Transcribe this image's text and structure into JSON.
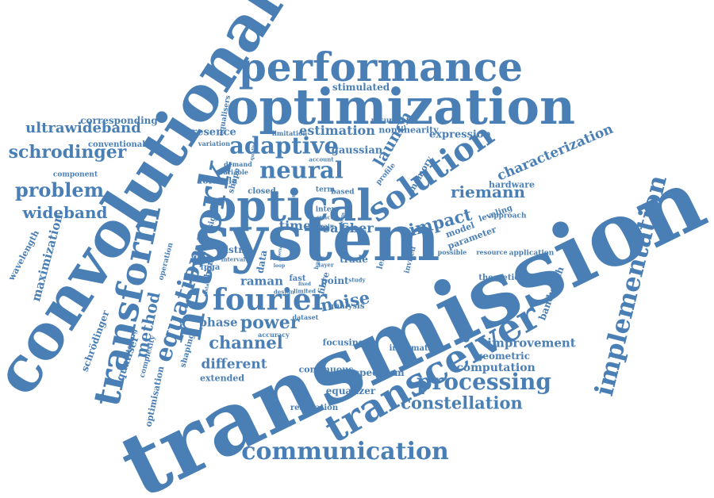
{
  "word_cloud": {
    "color": "#4a7fb5",
    "words": [
      {
        "text": "transmission",
        "rank": 1,
        "orientation": "diagonal-up"
      },
      {
        "text": "system",
        "rank": 2,
        "orientation": "horizontal"
      },
      {
        "text": "convolutional",
        "rank": 3,
        "orientation": "diagonal-up"
      },
      {
        "text": "optimization",
        "rank": 4,
        "orientation": "horizontal"
      },
      {
        "text": "performance",
        "rank": 5,
        "orientation": "horizontal"
      },
      {
        "text": "transceiver",
        "rank": 6,
        "orientation": "diagonal-up"
      },
      {
        "text": "optical",
        "rank": 7,
        "orientation": "horizontal"
      },
      {
        "text": "network",
        "rank": 8,
        "orientation": "vertical"
      },
      {
        "text": "transform",
        "rank": 9,
        "orientation": "vertical"
      },
      {
        "text": "solution",
        "rank": 10,
        "orientation": "diagonal-up"
      },
      {
        "text": "communication",
        "rank": 11,
        "orientation": "horizontal"
      },
      {
        "text": "implementation",
        "rank": 12,
        "orientation": "vertical"
      },
      {
        "text": "fourier",
        "rank": 13,
        "orientation": "horizontal"
      },
      {
        "text": "processing",
        "rank": 14,
        "orientation": "horizontal"
      },
      {
        "text": "adaptive",
        "rank": 15,
        "orientation": "horizontal"
      },
      {
        "text": "neural",
        "rank": 16,
        "orientation": "horizontal"
      },
      {
        "text": "equation",
        "rank": 17,
        "orientation": "vertical"
      },
      {
        "text": "schrodinger",
        "rank": 18,
        "orientation": "horizontal"
      },
      {
        "text": "problem",
        "rank": 19,
        "orientation": "horizontal"
      },
      {
        "text": "constellation",
        "rank": 20,
        "orientation": "horizontal"
      },
      {
        "text": "ultrawideband",
        "rank": 21,
        "orientation": "horizontal"
      },
      {
        "text": "power",
        "rank": 22,
        "orientation": "horizontal"
      },
      {
        "text": "channel",
        "rank": 23,
        "orientation": "horizontal"
      },
      {
        "text": "noise",
        "rank": 24,
        "orientation": "horizontal"
      },
      {
        "text": "method",
        "rank": 25,
        "orientation": "vertical"
      },
      {
        "text": "wideband",
        "rank": 26,
        "orientation": "horizontal"
      },
      {
        "text": "riemann",
        "rank": 27,
        "orientation": "horizontal"
      },
      {
        "text": "impact",
        "rank": 28,
        "orientation": "diagonal-up"
      },
      {
        "text": "launch",
        "rank": 29,
        "orientation": "diagonal-up"
      },
      {
        "text": "characterization",
        "rank": 30,
        "orientation": "diagonal-up"
      },
      {
        "text": "estimation",
        "rank": 31,
        "orientation": "horizontal"
      },
      {
        "text": "maximization",
        "rank": 32,
        "orientation": "vertical"
      },
      {
        "text": "time",
        "rank": 33,
        "orientation": "horizontal"
      },
      {
        "text": "real",
        "rank": 34,
        "orientation": "horizontal"
      },
      {
        "text": "fiber",
        "rank": 35,
        "orientation": "horizontal"
      },
      {
        "text": "different",
        "rank": 36,
        "orientation": "horizontal"
      },
      {
        "text": "improvement",
        "rank": 37,
        "orientation": "horizontal"
      },
      {
        "text": "bandwidth",
        "rank": 38,
        "orientation": "vertical"
      },
      {
        "text": "computation",
        "rank": 39,
        "orientation": "horizontal"
      },
      {
        "text": "phase",
        "rank": 40,
        "orientation": "horizontal"
      },
      {
        "text": "raman",
        "rank": 41,
        "orientation": "horizontal"
      },
      {
        "text": "gaussian",
        "rank": 42,
        "orientation": "horizontal"
      },
      {
        "text": "expression",
        "rank": 43,
        "orientation": "horizontal"
      },
      {
        "text": "presence",
        "rank": 44,
        "orientation": "horizontal"
      },
      {
        "text": "schrödinger",
        "rank": 45,
        "orientation": "vertical"
      },
      {
        "text": "wavelength",
        "rank": 46,
        "orientation": "vertical"
      },
      {
        "text": "equaliser",
        "rank": 47,
        "orientation": "vertical"
      },
      {
        "text": "corresponding",
        "rank": 48,
        "orientation": "horizontal"
      },
      {
        "text": "conventional",
        "rank": 49,
        "orientation": "horizontal"
      },
      {
        "text": "component",
        "rank": 50,
        "orientation": "horizontal"
      },
      {
        "text": "formula",
        "rank": 51,
        "orientation": "horizontal"
      },
      {
        "text": "shape",
        "rank": 52,
        "orientation": "vertical"
      },
      {
        "text": "closed",
        "rank": 53,
        "orientation": "horizontal"
      },
      {
        "text": "term",
        "rank": 54,
        "orientation": "horizontal"
      },
      {
        "text": "hardware",
        "rank": 55,
        "orientation": "horizontal"
      },
      {
        "text": "model",
        "rank": 56,
        "orientation": "diagonal-up"
      },
      {
        "text": "leveling",
        "rank": 57,
        "orientation": "diagonal-up"
      },
      {
        "text": "parameter",
        "rank": 58,
        "orientation": "diagonal-up"
      },
      {
        "text": "approach",
        "rank": 59,
        "orientation": "horizontal"
      },
      {
        "text": "application",
        "rank": 60,
        "orientation": "horizontal"
      },
      {
        "text": "resource",
        "rank": 61,
        "orientation": "horizontal"
      },
      {
        "text": "possible",
        "rank": 62,
        "orientation": "horizontal"
      },
      {
        "text": "theoretical",
        "rank": 63,
        "orientation": "horizontal"
      },
      {
        "text": "focusing",
        "rank": 64,
        "orientation": "horizontal"
      },
      {
        "text": "information",
        "rank": 65,
        "orientation": "horizontal"
      },
      {
        "text": "geometric",
        "rank": 66,
        "orientation": "horizontal"
      },
      {
        "text": "spectrum",
        "rank": 67,
        "orientation": "horizontal"
      },
      {
        "text": "continuous",
        "rank": 68,
        "orientation": "horizontal"
      },
      {
        "text": "equalizer",
        "rank": 69,
        "orientation": "horizontal"
      },
      {
        "text": "realization",
        "rank": 70,
        "orientation": "horizontal"
      },
      {
        "text": "extended",
        "rank": 71,
        "orientation": "horizontal"
      },
      {
        "text": "shaping",
        "rank": 72,
        "orientation": "vertical"
      },
      {
        "text": "optimisation",
        "rank": 73,
        "orientation": "vertical"
      },
      {
        "text": "scattering",
        "rank": 74,
        "orientation": "vertical"
      },
      {
        "text": "complexity",
        "rank": 75,
        "orientation": "vertical"
      },
      {
        "text": "trade",
        "rank": 76,
        "orientation": "horizontal"
      },
      {
        "text": "point",
        "rank": 77,
        "orientation": "horizontal"
      },
      {
        "text": "analysis",
        "rank": 78,
        "orientation": "horizontal"
      },
      {
        "text": "dataset",
        "rank": 79,
        "orientation": "horizontal"
      },
      {
        "text": "accuracy",
        "rank": 80,
        "orientation": "horizontal"
      },
      {
        "text": "fast",
        "rank": 81,
        "orientation": "horizontal"
      },
      {
        "text": "fibre",
        "rank": 82,
        "orientation": "vertical"
      },
      {
        "text": "length",
        "rank": 83,
        "orientation": "vertical"
      },
      {
        "text": "invited",
        "rank": 84,
        "orientation": "vertical"
      },
      {
        "text": "data",
        "rank": 85,
        "orientation": "vertical"
      },
      {
        "text": "blstm",
        "rank": 86,
        "orientation": "horizontal"
      },
      {
        "text": "fpga",
        "rank": 87,
        "orientation": "horizontal"
      },
      {
        "text": "short",
        "rank": 88,
        "orientation": "vertical"
      },
      {
        "text": "interval",
        "rank": 89,
        "orientation": "horizontal"
      },
      {
        "text": "signal",
        "rank": 90,
        "orientation": "vertical"
      },
      {
        "text": "variable",
        "rank": 91,
        "orientation": "horizontal"
      },
      {
        "text": "demand",
        "rank": 92,
        "orientation": "horizontal"
      },
      {
        "text": "variation",
        "rank": 93,
        "orientation": "horizontal"
      },
      {
        "text": "equalisers",
        "rank": 94,
        "orientation": "vertical"
      },
      {
        "text": "quality",
        "rank": 95,
        "orientation": "vertical"
      },
      {
        "text": "limitation",
        "rank": 96,
        "orientation": "horizontal"
      },
      {
        "text": "account",
        "rank": 97,
        "orientation": "horizontal"
      },
      {
        "text": "stimulated",
        "rank": 98,
        "orientation": "horizontal"
      },
      {
        "text": "recurrent",
        "rank": 99,
        "orientation": "horizontal"
      },
      {
        "text": "nonlinearity",
        "rank": 100,
        "orientation": "horizontal"
      },
      {
        "text": "memory",
        "rank": 101,
        "orientation": "diagonal-up"
      },
      {
        "text": "profile",
        "rank": 102,
        "orientation": "diagonal-up"
      },
      {
        "text": "based",
        "rank": 103,
        "orientation": "horizontal"
      },
      {
        "text": "inter",
        "rank": 104,
        "orientation": "horizontal"
      },
      {
        "text": "space",
        "rank": 105,
        "orientation": "horizontal"
      },
      {
        "text": "main",
        "rank": 106,
        "orientation": "horizontal"
      },
      {
        "text": "gain",
        "rank": 107,
        "orientation": "horizontal"
      },
      {
        "text": "layer",
        "rank": 108,
        "orientation": "horizontal"
      },
      {
        "text": "study",
        "rank": 109,
        "orientation": "horizontal"
      },
      {
        "text": "limited",
        "rank": 110,
        "orientation": "horizontal"
      },
      {
        "text": "design",
        "rank": 111,
        "orientation": "horizontal"
      },
      {
        "text": "operation",
        "rank": 112,
        "orientation": "vertical"
      },
      {
        "text": "distance",
        "rank": 113,
        "orientation": "vertical"
      },
      {
        "text": "matrix",
        "rank": 114,
        "orientation": "vertical"
      },
      {
        "text": "loop",
        "rank": 115,
        "orientation": "horizontal"
      },
      {
        "text": "range",
        "rank": 116,
        "orientation": "horizontal"
      },
      {
        "text": "fixed",
        "rank": 117,
        "orientation": "horizontal"
      },
      {
        "text": "form",
        "rank": 118,
        "orientation": "vertical"
      },
      {
        "text": "better",
        "rank": 119,
        "orientation": "vertical"
      },
      {
        "text": "band",
        "rank": 120,
        "orientation": "vertical"
      }
    ]
  }
}
